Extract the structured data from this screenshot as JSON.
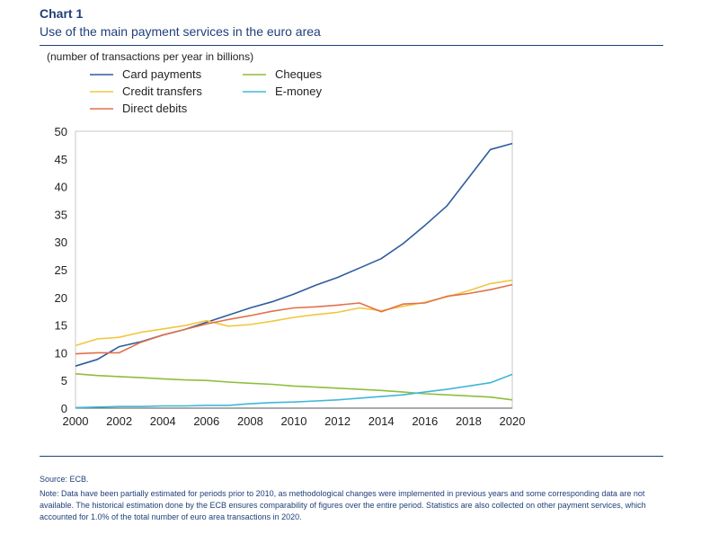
{
  "header": {
    "label": "Chart 1",
    "title": "Use of the main payment services in the euro area"
  },
  "footer": {
    "source": "Source: ECB.",
    "note": "Note: Data have been partially estimated for periods prior to 2010, as methodological changes were implemented in previous years and some corresponding data are not available. The historical estimation done by the ECB ensures comparability of figures over the entire period. Statistics are also collected on other payment services, which accounted for 1.0% of the total number of euro area transactions in 2020."
  },
  "chart_data": {
    "type": "line",
    "title": "Use of the main payment services in the euro area",
    "subtitle": "(number of transactions per year in billions)",
    "xlabel": "",
    "ylabel": "",
    "x": [
      2000,
      2001,
      2002,
      2003,
      2004,
      2005,
      2006,
      2007,
      2008,
      2009,
      2010,
      2011,
      2012,
      2013,
      2014,
      2015,
      2016,
      2017,
      2018,
      2019,
      2020
    ],
    "xlim": [
      2000,
      2020
    ],
    "ylim": [
      0,
      50
    ],
    "x_ticks": [
      2000,
      2002,
      2004,
      2006,
      2008,
      2010,
      2012,
      2014,
      2016,
      2018,
      2020
    ],
    "y_ticks": [
      0,
      5,
      10,
      15,
      20,
      25,
      30,
      35,
      40,
      45,
      50
    ],
    "grid": false,
    "legend_position": "top-left",
    "series": [
      {
        "name": "Card payments",
        "color": "#2e5c9e",
        "values": [
          7.6,
          8.8,
          11.1,
          12.0,
          13.2,
          14.2,
          15.5,
          16.8,
          18.1,
          19.2,
          20.6,
          22.2,
          23.6,
          25.3,
          27.0,
          29.7,
          33.0,
          36.5,
          41.6,
          46.7,
          47.8
        ]
      },
      {
        "name": "Credit transfers",
        "color": "#f2c640",
        "values": [
          11.3,
          12.5,
          12.8,
          13.7,
          14.3,
          14.9,
          15.8,
          14.8,
          15.1,
          15.7,
          16.4,
          16.9,
          17.3,
          18.1,
          17.6,
          18.4,
          19.1,
          20.1,
          21.2,
          22.5,
          23.1
        ]
      },
      {
        "name": "Direct debits",
        "color": "#e2714a",
        "values": [
          9.8,
          10.0,
          10.0,
          11.9,
          13.2,
          14.2,
          15.2,
          16.0,
          16.7,
          17.5,
          18.1,
          18.3,
          18.6,
          19.0,
          17.4,
          18.8,
          19.0,
          20.2,
          20.7,
          21.4,
          22.3
        ]
      },
      {
        "name": "Cheques",
        "color": "#8fbe3a",
        "values": [
          6.2,
          5.9,
          5.7,
          5.5,
          5.3,
          5.1,
          5.0,
          4.7,
          4.5,
          4.3,
          4.0,
          3.8,
          3.6,
          3.4,
          3.2,
          2.9,
          2.6,
          2.4,
          2.2,
          2.0,
          1.5
        ]
      },
      {
        "name": "E-money",
        "color": "#40b7d6",
        "values": [
          0.1,
          0.2,
          0.3,
          0.3,
          0.4,
          0.4,
          0.5,
          0.5,
          0.8,
          1.0,
          1.1,
          1.3,
          1.5,
          1.8,
          2.1,
          2.4,
          2.9,
          3.4,
          4.0,
          4.6,
          6.1
        ]
      }
    ]
  }
}
